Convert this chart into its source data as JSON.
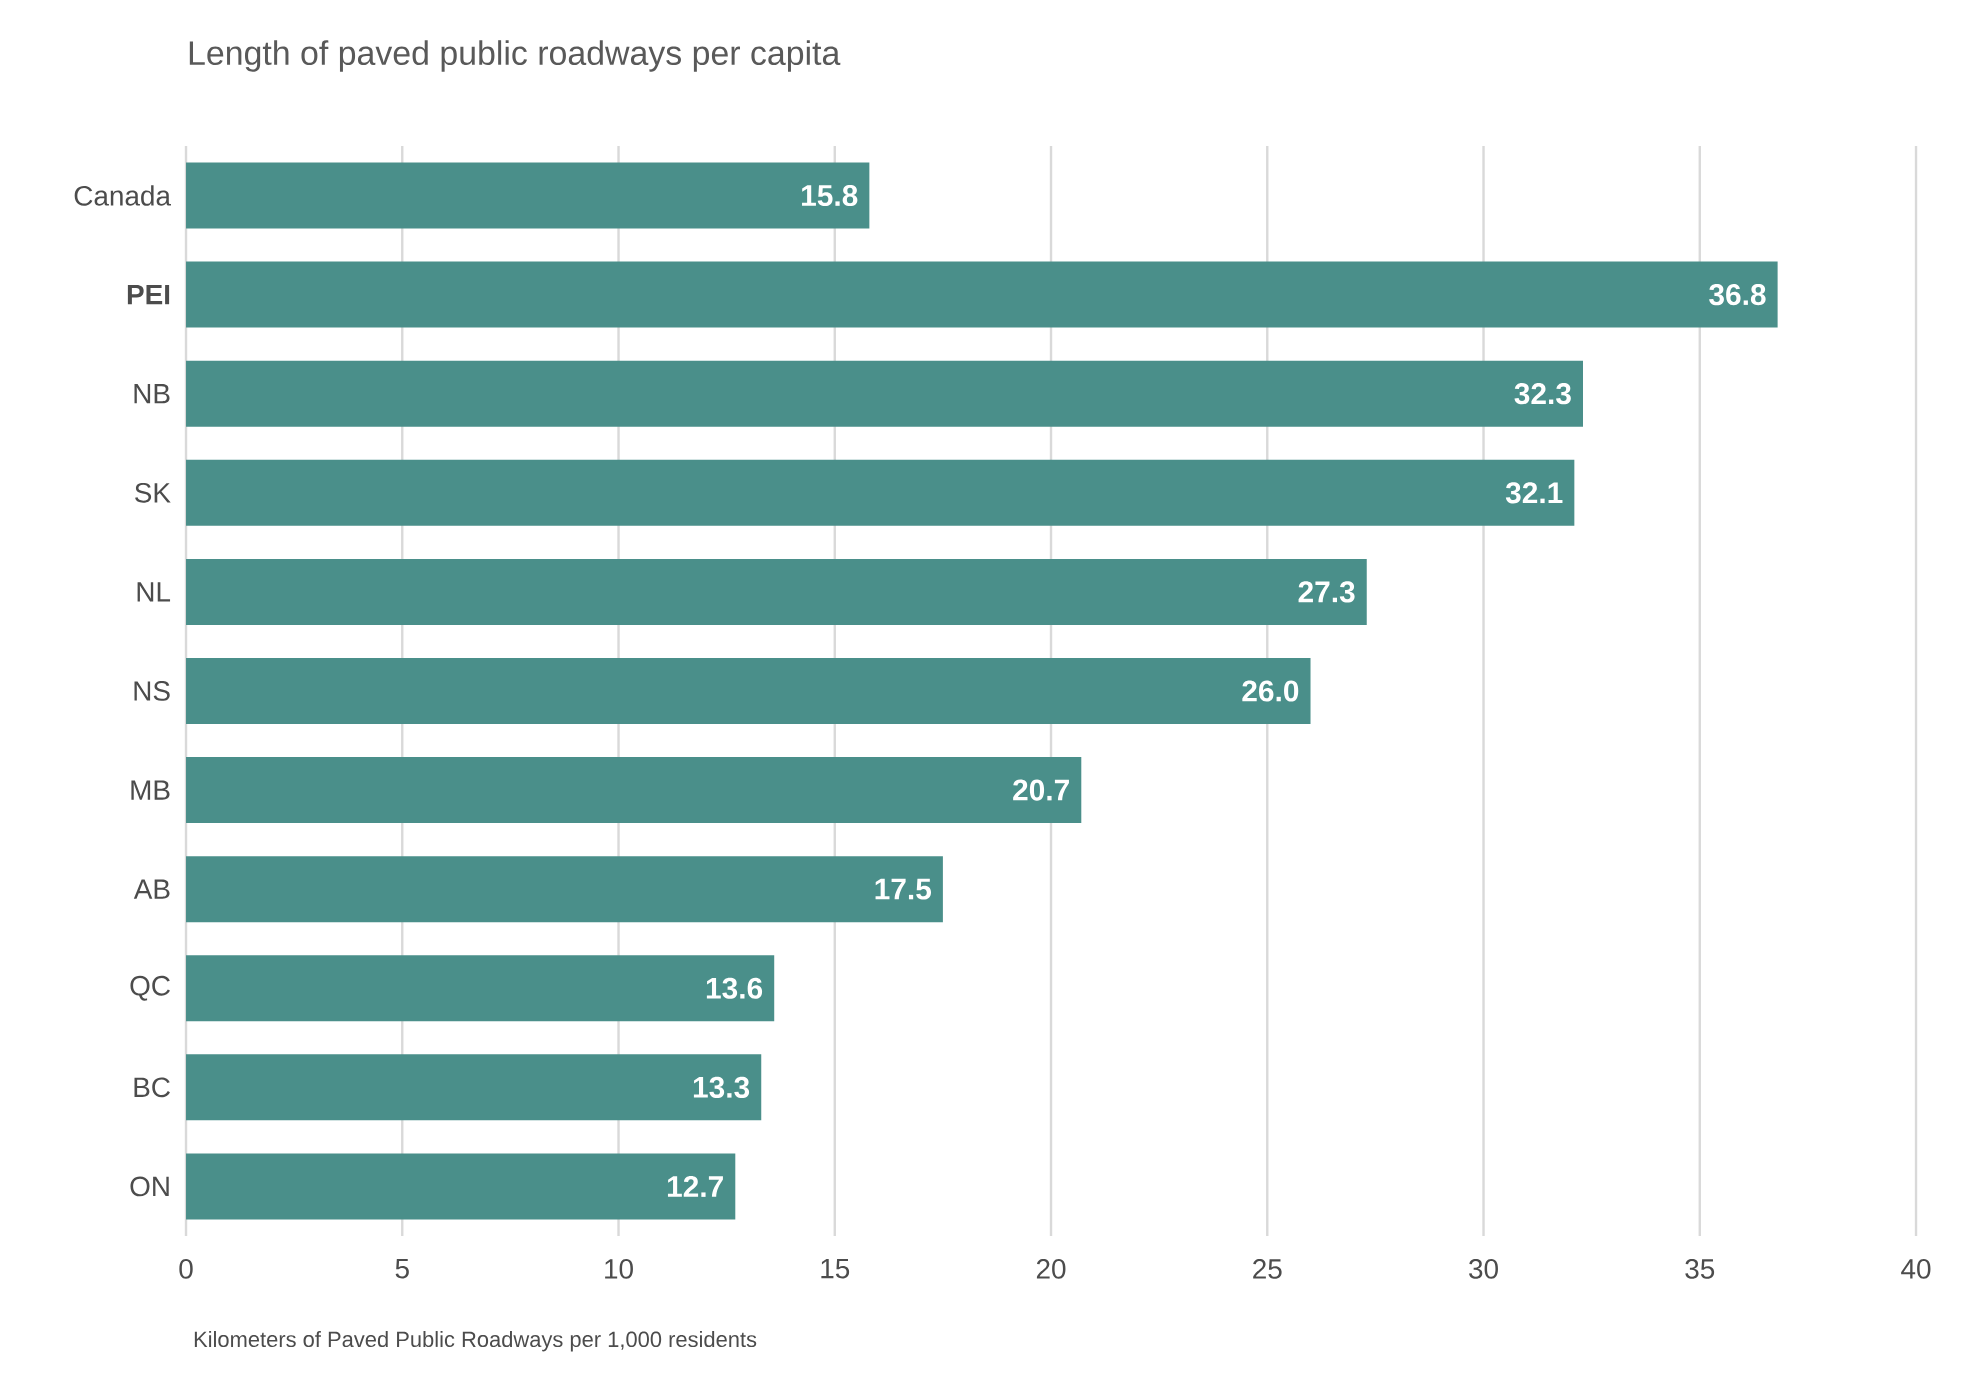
{
  "chart_data": {
    "type": "bar",
    "orientation": "horizontal",
    "title": "Length of paved public roadways per capita",
    "xlabel": "Kilometers of Paved Public Roadways per 1,000 residents",
    "categories": [
      "Canada",
      "**PEI**",
      "NB",
      "SK",
      "NL",
      "NS",
      "MB",
      "AB",
      "QC",
      "BC",
      "ON"
    ],
    "values": [
      15.8,
      36.8,
      32.3,
      32.1,
      27.3,
      26.0,
      20.7,
      17.5,
      13.6,
      13.3,
      12.7
    ],
    "color": "#4a8f8a",
    "xlim": [
      0,
      40
    ],
    "xticks": [
      0,
      5,
      10,
      15,
      20,
      25,
      30,
      35,
      40
    ],
    "value_labels": [
      "15.8",
      "36.8",
      "32.3",
      "32.1",
      "27.3",
      "26.0",
      "20.7",
      "17.5",
      "13.6",
      "13.3",
      "12.7"
    ],
    "grid": "x"
  }
}
